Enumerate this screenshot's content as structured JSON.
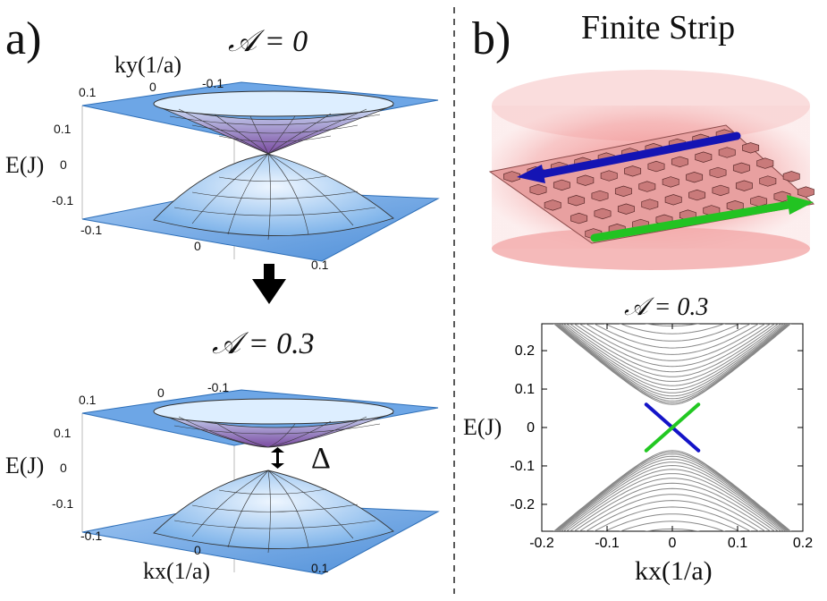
{
  "panel_a": {
    "letter": "a)",
    "top": {
      "param_label": "𝒜 = 0",
      "ky_label": "ky(1/a)",
      "ky_ticks": [
        "0.1",
        "0",
        "-0.1"
      ],
      "e_label": "E(J)",
      "e_ticks": [
        "0.1",
        "0",
        "-0.1"
      ],
      "kx_ticks": [
        "-0.1",
        "0",
        "0.1"
      ]
    },
    "bottom": {
      "param_label": "𝒜 = 0.3",
      "ky_ticks": [
        "0.1",
        "0",
        "-0.1"
      ],
      "e_label": "E(J)",
      "e_ticks": [
        "0.1",
        "0",
        "-0.1"
      ],
      "kx_ticks": [
        "-0.1",
        "0",
        "0.1"
      ],
      "kx_label": "kx(1/a)",
      "gap_label": "Δ"
    }
  },
  "panel_b": {
    "letter": "b)",
    "title": "Finite Strip",
    "colors": {
      "edge_1": "#1414b4",
      "edge_2": "#22c322",
      "halo": "#f08a8a"
    }
  },
  "chart_data": {
    "type": "line",
    "title": "𝒜 = 0.3",
    "xlabel": "kx(1/a)",
    "ylabel": "E(J)",
    "xlim": [
      -0.2,
      0.2
    ],
    "ylim": [
      -0.27,
      0.27
    ],
    "x_ticks": [
      "-0.2",
      "-0.1",
      "0",
      "0.1",
      "0.2"
    ],
    "y_ticks": [
      "0.2",
      "0.1",
      "0",
      "-0.1",
      "-0.2"
    ],
    "bulk_gap": 0.06,
    "bulk_band_offsets": [
      0.0,
      0.004,
      0.009,
      0.015,
      0.022,
      0.03,
      0.039,
      0.049,
      0.06,
      0.072,
      0.085,
      0.099,
      0.114,
      0.13,
      0.147,
      0.165,
      0.184,
      0.204
    ],
    "series": [
      {
        "color": "#1414c8",
        "points": [
          [
            -0.04,
            0.06
          ],
          [
            0.04,
            -0.06
          ]
        ]
      },
      {
        "color": "#22c822",
        "points": [
          [
            -0.04,
            -0.06
          ],
          [
            0.04,
            0.06
          ]
        ]
      }
    ]
  }
}
